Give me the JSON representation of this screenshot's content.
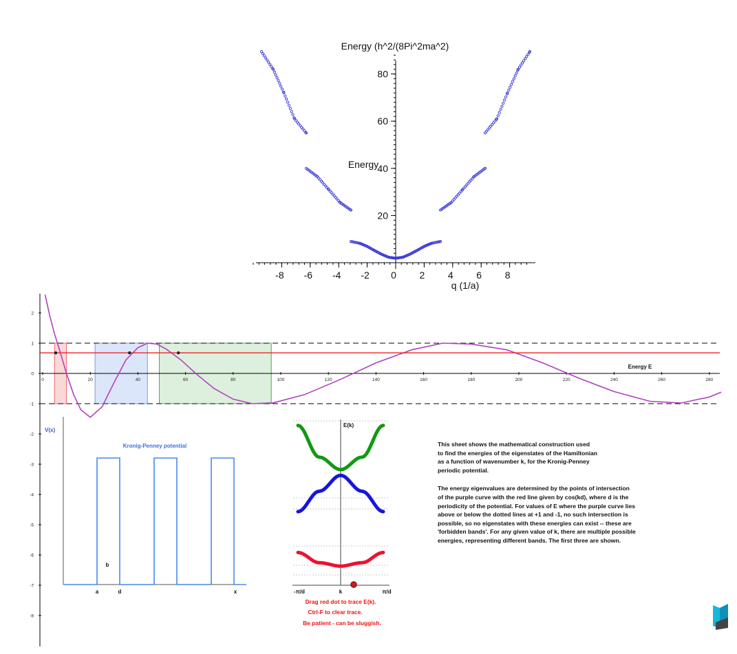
{
  "band_plot": {
    "title": "Energy (h^2/(8Pi^2ma^2)",
    "ylabel": "Energy",
    "xlabel": "q (1/a)",
    "xticks": [
      "-8",
      "-6",
      "-4",
      "-2",
      "0",
      "2",
      "4",
      "6",
      "8"
    ],
    "yticks": [
      "20",
      "40",
      "60",
      "80"
    ]
  },
  "kp_plot": {
    "energy_label": "Energy E",
    "xticks": [
      "0",
      "20",
      "40",
      "60",
      "80",
      "100",
      "120",
      "140",
      "160",
      "180",
      "200",
      "220",
      "240",
      "260",
      "280"
    ],
    "yticks": [
      "2",
      "1",
      "0",
      "-1",
      "-2",
      "-3",
      "-4",
      "-5",
      "-6",
      "-7",
      "-8"
    ],
    "red_line_value": 0.68,
    "dashed_levels": [
      1,
      -1
    ]
  },
  "potential": {
    "title": "Kronig-Penney potential",
    "ylabel": "V(x)",
    "label_a": "a",
    "label_b": "b",
    "label_d": "d",
    "label_x": "x"
  },
  "ek_plot": {
    "title": "E(k)",
    "left_label": "-π/d",
    "center_label": "k",
    "right_label": "π/d",
    "instruction_1": "Drag red dot to trace E(k).",
    "instruction_2": "Ctrl-F to clear trace.",
    "instruction_3": "Be patient - can be sluggish.",
    "colors": {
      "band1": "#ee1133",
      "band2": "#1515dd",
      "band3": "#119911"
    }
  },
  "description": {
    "paragraph_1": "This sheet shows the mathematical construction used\nto find the energies of the eigenstates of the Hamiltonian\nas a function of wavenumber k, for the Kronig-Penney\nperiodic potential.",
    "paragraph_2": "The energy eigenvalues are determined by the points of intersection\nof the purple curve with the red line given by cos(kd), where d is the\nperiodicity of the potential. For values of E where the purple curve lies\nabove or below the dotted lines at +1 and -1, no such intersection is\npossible, so no eigenstates with these energies can exist -- these are\n'forbidden bands'.  For any given value of k, there are multiple possible\nenergies, representing different bands. The first three are shown."
  },
  "chart_data": [
    {
      "type": "scatter",
      "title": "Energy (h^2/(8Pi^2ma^2)",
      "xlabel": "q (1/a)",
      "ylabel": "Energy",
      "xlim": [
        -10,
        10
      ],
      "ylim": [
        0,
        90
      ],
      "series": [
        {
          "x": [
            -3.14,
            -2.5,
            -2,
            -1.5,
            -1,
            -0.5,
            0,
            0.5,
            1,
            1.5,
            2,
            2.5,
            3.14
          ],
          "values": [
            9.0,
            8.2,
            6.9,
            5.2,
            3.6,
            2.3,
            1.9,
            2.3,
            3.6,
            5.2,
            6.9,
            8.2,
            9.0
          ]
        },
        {
          "x": [
            -6.28,
            -5.5,
            -4.7,
            -3.9,
            -3.14
          ],
          "values": [
            40.0,
            36.5,
            31.0,
            25.5,
            22.3
          ]
        },
        {
          "x": [
            3.14,
            3.9,
            4.7,
            5.5,
            6.28
          ],
          "values": [
            22.3,
            25.5,
            31.0,
            36.5,
            40.0
          ]
        },
        {
          "x": [
            -9.42,
            -8.6,
            -7.85,
            -7.1,
            -6.28
          ],
          "values": [
            89.5,
            82.0,
            72.0,
            61.0,
            55.0
          ]
        },
        {
          "x": [
            6.28,
            7.1,
            7.85,
            8.6,
            9.42
          ],
          "values": [
            55.0,
            61.0,
            72.0,
            82.0,
            89.5
          ]
        }
      ]
    },
    {
      "type": "line",
      "xlabel": "Energy E",
      "xlim": [
        0,
        285
      ],
      "ylim": [
        -8.8,
        2.6
      ],
      "series": [
        {
          "x": [
            1,
            3,
            5,
            7,
            10,
            13,
            16,
            20,
            25,
            30,
            35,
            40,
            44,
            48,
            52,
            58,
            65,
            72,
            80,
            88,
            97,
            110,
            125,
            140,
            155,
            168,
            180,
            195,
            210,
            225,
            240,
            255,
            268,
            280,
            285
          ],
          "values": [
            2.6,
            1.9,
            1.3,
            0.8,
            0.0,
            -0.7,
            -1.2,
            -1.45,
            -1.1,
            -0.3,
            0.45,
            0.85,
            1.0,
            0.97,
            0.8,
            0.45,
            -0.05,
            -0.5,
            -0.85,
            -1.0,
            -0.97,
            -0.7,
            -0.2,
            0.35,
            0.78,
            1.0,
            0.97,
            0.78,
            0.35,
            -0.15,
            -0.6,
            -0.92,
            -0.98,
            -0.78,
            -0.62
          ]
        }
      ],
      "red_line": 0.68,
      "allowed_bands": [
        [
          5,
          10
        ],
        [
          22,
          44
        ],
        [
          49,
          96
        ]
      ]
    },
    {
      "type": "line",
      "title": "E(k)",
      "xlim": [
        -1,
        1
      ],
      "series": [
        {
          "name": "band1",
          "x": [
            -1,
            -0.5,
            0,
            0.5,
            1
          ],
          "values": [
            1.2,
            0.75,
            0.6,
            0.75,
            1.2
          ]
        },
        {
          "name": "band2",
          "x": [
            -1,
            -0.5,
            0,
            0.5,
            1
          ],
          "values": [
            3.0,
            3.9,
            4.6,
            3.9,
            3.0
          ]
        },
        {
          "name": "band3",
          "x": [
            -1,
            -0.5,
            0,
            0.5,
            1
          ],
          "values": [
            6.8,
            5.4,
            4.85,
            5.4,
            6.8
          ]
        }
      ]
    }
  ]
}
